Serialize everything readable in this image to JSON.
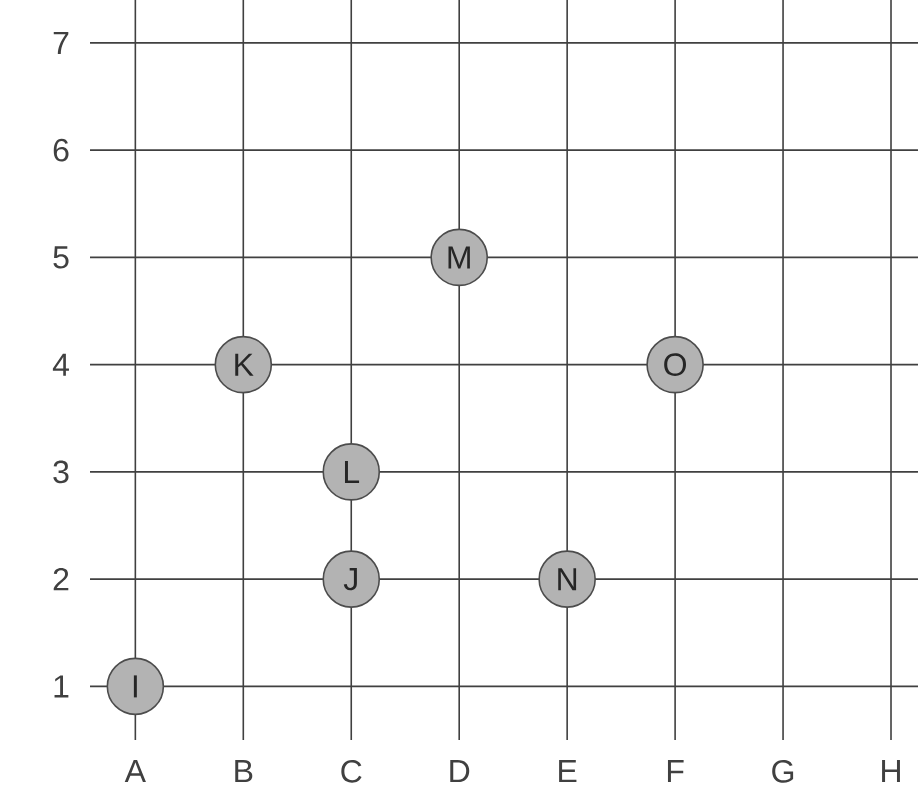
{
  "chart_data": {
    "type": "scatter",
    "categories": [
      "A",
      "B",
      "C",
      "D",
      "E",
      "F",
      "G",
      "H"
    ],
    "series": [
      {
        "x": [
          "A",
          "C",
          "B",
          "C",
          "D",
          "E",
          "F"
        ],
        "values": [
          1,
          2,
          4,
          3,
          5,
          2,
          4
        ],
        "color": "#b3b3b3"
      }
    ],
    "ylim": [
      0.5,
      7.4
    ],
    "yticks": [
      1,
      2,
      3,
      4,
      5,
      6,
      7
    ],
    "grid": true,
    "annotations": [
      {
        "text": "I",
        "x": "A",
        "y": 1
      },
      {
        "text": "J",
        "x": "C",
        "y": 2
      },
      {
        "text": "K",
        "x": "B",
        "y": 4
      },
      {
        "text": "L",
        "x": "C",
        "y": 3
      },
      {
        "text": "M",
        "x": "D",
        "y": 5
      },
      {
        "text": "N",
        "x": "E",
        "y": 2
      },
      {
        "text": "O",
        "x": "F",
        "y": 4
      }
    ]
  }
}
